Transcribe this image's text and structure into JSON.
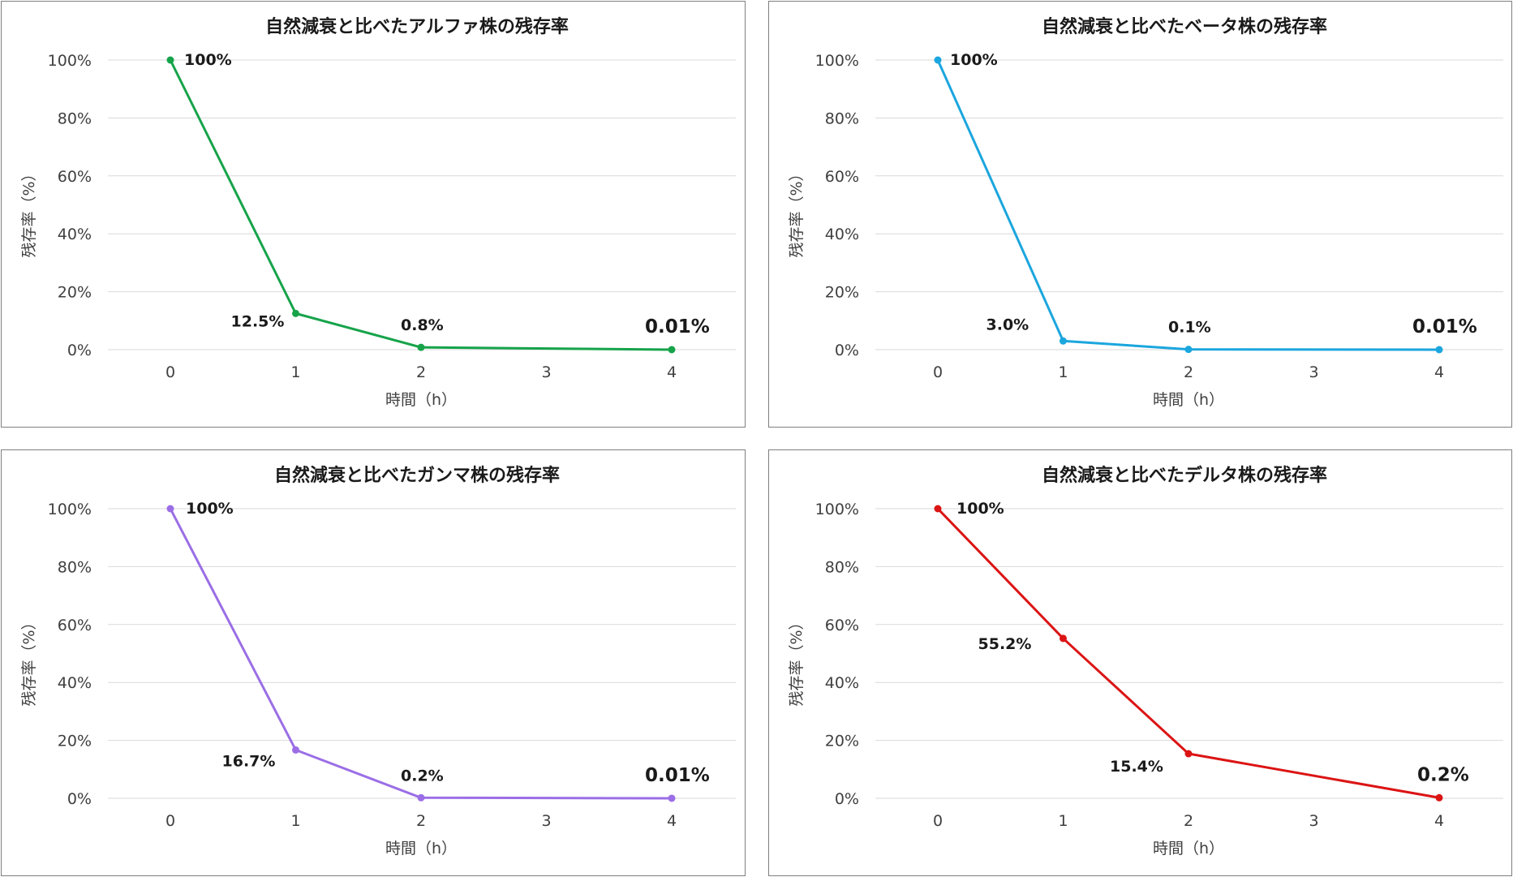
{
  "chart_data": [
    {
      "type": "line",
      "title": "自然減衰と比べたアルファ株の残存率",
      "xlabel": "時間（h）",
      "ylabel": "残存率（%）",
      "x": [
        0,
        1,
        2,
        4
      ],
      "x_ticks": [
        "0",
        "1",
        "2",
        "3",
        "4"
      ],
      "y_ticks": [
        "0%",
        "20%",
        "40%",
        "60%",
        "80%",
        "100%"
      ],
      "ylim": [
        0,
        100
      ],
      "xlim": [
        0,
        4
      ],
      "grid": true,
      "color": "#16a34a",
      "series": [
        {
          "values": [
            100,
            12.5,
            0.8,
            0.01
          ]
        }
      ],
      "data_labels": [
        "100%",
        "12.5%",
        "0.8%",
        "0.01%"
      ]
    },
    {
      "type": "line",
      "title": "自然減衰と比べたベータ株の残存率",
      "xlabel": "時間（h）",
      "ylabel": "残存率（%）",
      "x": [
        0,
        1,
        2,
        4
      ],
      "x_ticks": [
        "0",
        "1",
        "2",
        "3",
        "4"
      ],
      "y_ticks": [
        "0%",
        "20%",
        "40%",
        "60%",
        "80%",
        "100%"
      ],
      "ylim": [
        0,
        100
      ],
      "xlim": [
        0,
        4
      ],
      "grid": true,
      "color": "#1ba6de",
      "series": [
        {
          "values": [
            100,
            3.0,
            0.1,
            0.01
          ]
        }
      ],
      "data_labels": [
        "100%",
        "3.0%",
        "0.1%",
        "0.01%"
      ]
    },
    {
      "type": "line",
      "title": "自然減衰と比べたガンマ株の残存率",
      "xlabel": "時間（h）",
      "ylabel": "残存率（%）",
      "x": [
        0,
        1,
        2,
        4
      ],
      "x_ticks": [
        "0",
        "1",
        "2",
        "3",
        "4"
      ],
      "y_ticks": [
        "0%",
        "20%",
        "40%",
        "60%",
        "80%",
        "100%"
      ],
      "ylim": [
        0,
        100
      ],
      "xlim": [
        0,
        4
      ],
      "grid": true,
      "color": "#9b6ee6",
      "series": [
        {
          "values": [
            100,
            16.7,
            0.2,
            0.01
          ]
        }
      ],
      "data_labels": [
        "100%",
        "16.7%",
        "0.2%",
        "0.01%"
      ]
    },
    {
      "type": "line",
      "title": "自然減衰と比べたデルタ株の残存率",
      "xlabel": "時間（h）",
      "ylabel": "残存率（%）",
      "x": [
        0,
        1,
        2,
        4
      ],
      "x_ticks": [
        "0",
        "1",
        "2",
        "3",
        "4"
      ],
      "y_ticks": [
        "0%",
        "20%",
        "40%",
        "60%",
        "80%",
        "100%"
      ],
      "ylim": [
        0,
        100
      ],
      "xlim": [
        0,
        4
      ],
      "grid": true,
      "color": "#dc1414",
      "series": [
        {
          "values": [
            100,
            55.2,
            15.4,
            0.2
          ]
        }
      ],
      "data_labels": [
        "100%",
        "55.2%",
        "15.4%",
        "0.2%"
      ]
    }
  ]
}
